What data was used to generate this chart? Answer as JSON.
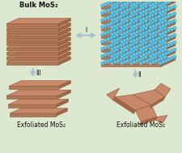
{
  "bg_color": "#dde8d0",
  "mos2_top_color": "#c8896a",
  "mos2_side_color": "#b07858",
  "mos2_right_color": "#a06848",
  "mos2_edge": "#8a5535",
  "li_color": "#62c8e8",
  "li_edge": "#1880a8",
  "text_color": "#111111",
  "arrow_color": "#a8c0d0",
  "arrow_outline": "#7090a8",
  "title_bulk": "Bulk MoS₂",
  "title_exf1": "Exfoliated MoS₂",
  "title_exf2": "Exfoliated MoS₂",
  "label_I": "I",
  "label_II": "II",
  "label_III": "III",
  "fig_width": 2.26,
  "fig_height": 1.89,
  "dpi": 100
}
